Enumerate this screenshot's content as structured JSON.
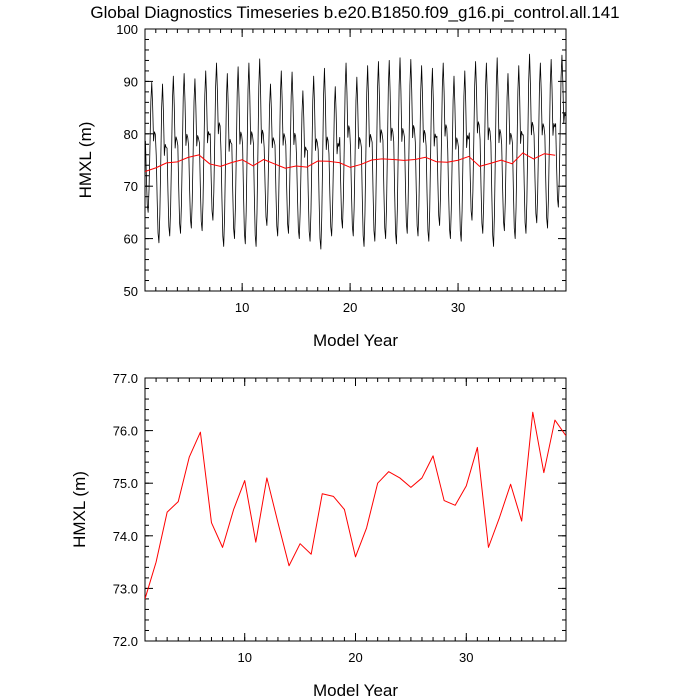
{
  "page_title": "Global Diagnostics Timeseries b.e20.B1850.f09_g16.pi_control.all.141",
  "chart_data": [
    {
      "type": "line",
      "title": "Global Diagnostics Timeseries b.e20.B1850.f09_g16.pi_control.all.141",
      "xlabel": "Model Year",
      "ylabel": "HMXL (m)",
      "xlim": [
        1,
        40
      ],
      "ylim": [
        50,
        100
      ],
      "xticks": [
        10,
        20,
        30
      ],
      "yticks": [
        50,
        60,
        70,
        80,
        90,
        100
      ],
      "grid": false,
      "legend": "none",
      "series": [
        {
          "color": "#000000",
          "monthly_maxima": [
            89.8,
            89.5,
            91.0,
            91.5,
            90.5,
            92.0,
            93.5,
            91.5,
            92.8,
            93.5,
            94.3,
            89.5,
            92.0,
            91.8,
            88.2,
            91.0,
            92.5,
            89.0,
            93.5,
            90.8,
            93.0,
            93.8,
            94.0,
            94.5,
            94.2,
            93.0,
            92.5,
            93.5,
            91.0,
            92.0,
            93.8,
            93.5,
            94.5,
            91.5,
            93.0,
            95.2,
            93.5,
            94.2,
            95.0
          ],
          "monthly_minima": [
            65.0,
            59.2,
            60.5,
            61.0,
            62.0,
            61.5,
            63.5,
            58.5,
            60.0,
            59.0,
            58.5,
            62.5,
            60.5,
            61.0,
            60.0,
            59.5,
            58.0,
            60.5,
            62.0,
            60.5,
            58.5,
            59.5,
            60.0,
            59.0,
            61.0,
            60.5,
            59.5,
            62.5,
            60.0,
            59.5,
            63.5,
            61.0,
            58.5,
            61.5,
            60.0,
            61.0,
            63.0,
            62.0,
            66.0
          ]
        },
        {
          "color": "#ff0000",
          "x": [
            1,
            2,
            3,
            4,
            5,
            6,
            7,
            8,
            9,
            10,
            11,
            12,
            13,
            14,
            15,
            16,
            17,
            18,
            19,
            20,
            21,
            22,
            23,
            24,
            25,
            26,
            27,
            28,
            29,
            30,
            31,
            32,
            33,
            34,
            35,
            36,
            37,
            38,
            39
          ],
          "values": [
            72.8,
            73.5,
            74.45,
            74.65,
            75.5,
            75.97,
            74.25,
            73.78,
            74.5,
            75.05,
            73.88,
            75.1,
            74.25,
            73.43,
            73.85,
            73.65,
            74.8,
            74.75,
            74.5,
            73.6,
            74.15,
            75.0,
            75.22,
            75.1,
            74.92,
            75.1,
            75.52,
            74.67,
            74.58,
            74.95,
            75.68,
            73.78,
            74.35,
            74.98,
            74.28,
            76.35,
            75.2,
            76.2,
            75.9
          ]
        }
      ]
    },
    {
      "type": "line",
      "xlabel": "Model Year",
      "ylabel": "HMXL (m)",
      "xlim": [
        1,
        39
      ],
      "ylim": [
        72.0,
        77.0
      ],
      "xticks": [
        10,
        20,
        30
      ],
      "yticks": [
        72.0,
        73.0,
        74.0,
        75.0,
        76.0,
        77.0
      ],
      "ytick_labels": [
        "72.0",
        "73.0",
        "74.0",
        "75.0",
        "76.0",
        "77.0"
      ],
      "grid": false,
      "legend": "none",
      "series": [
        {
          "color": "#ff0000",
          "x": [
            1,
            2,
            3,
            4,
            5,
            6,
            7,
            8,
            9,
            10,
            11,
            12,
            13,
            14,
            15,
            16,
            17,
            18,
            19,
            20,
            21,
            22,
            23,
            24,
            25,
            26,
            27,
            28,
            29,
            30,
            31,
            32,
            33,
            34,
            35,
            36,
            37,
            38,
            39
          ],
          "values": [
            72.8,
            73.5,
            74.45,
            74.65,
            75.5,
            75.97,
            74.25,
            73.78,
            74.5,
            75.05,
            73.88,
            75.1,
            74.25,
            73.43,
            73.85,
            73.65,
            74.8,
            74.75,
            74.5,
            73.6,
            74.15,
            75.0,
            75.22,
            75.1,
            74.92,
            75.1,
            75.52,
            74.67,
            74.58,
            74.95,
            75.68,
            73.78,
            74.35,
            74.98,
            74.28,
            76.35,
            75.2,
            76.2,
            75.9
          ]
        }
      ]
    }
  ]
}
